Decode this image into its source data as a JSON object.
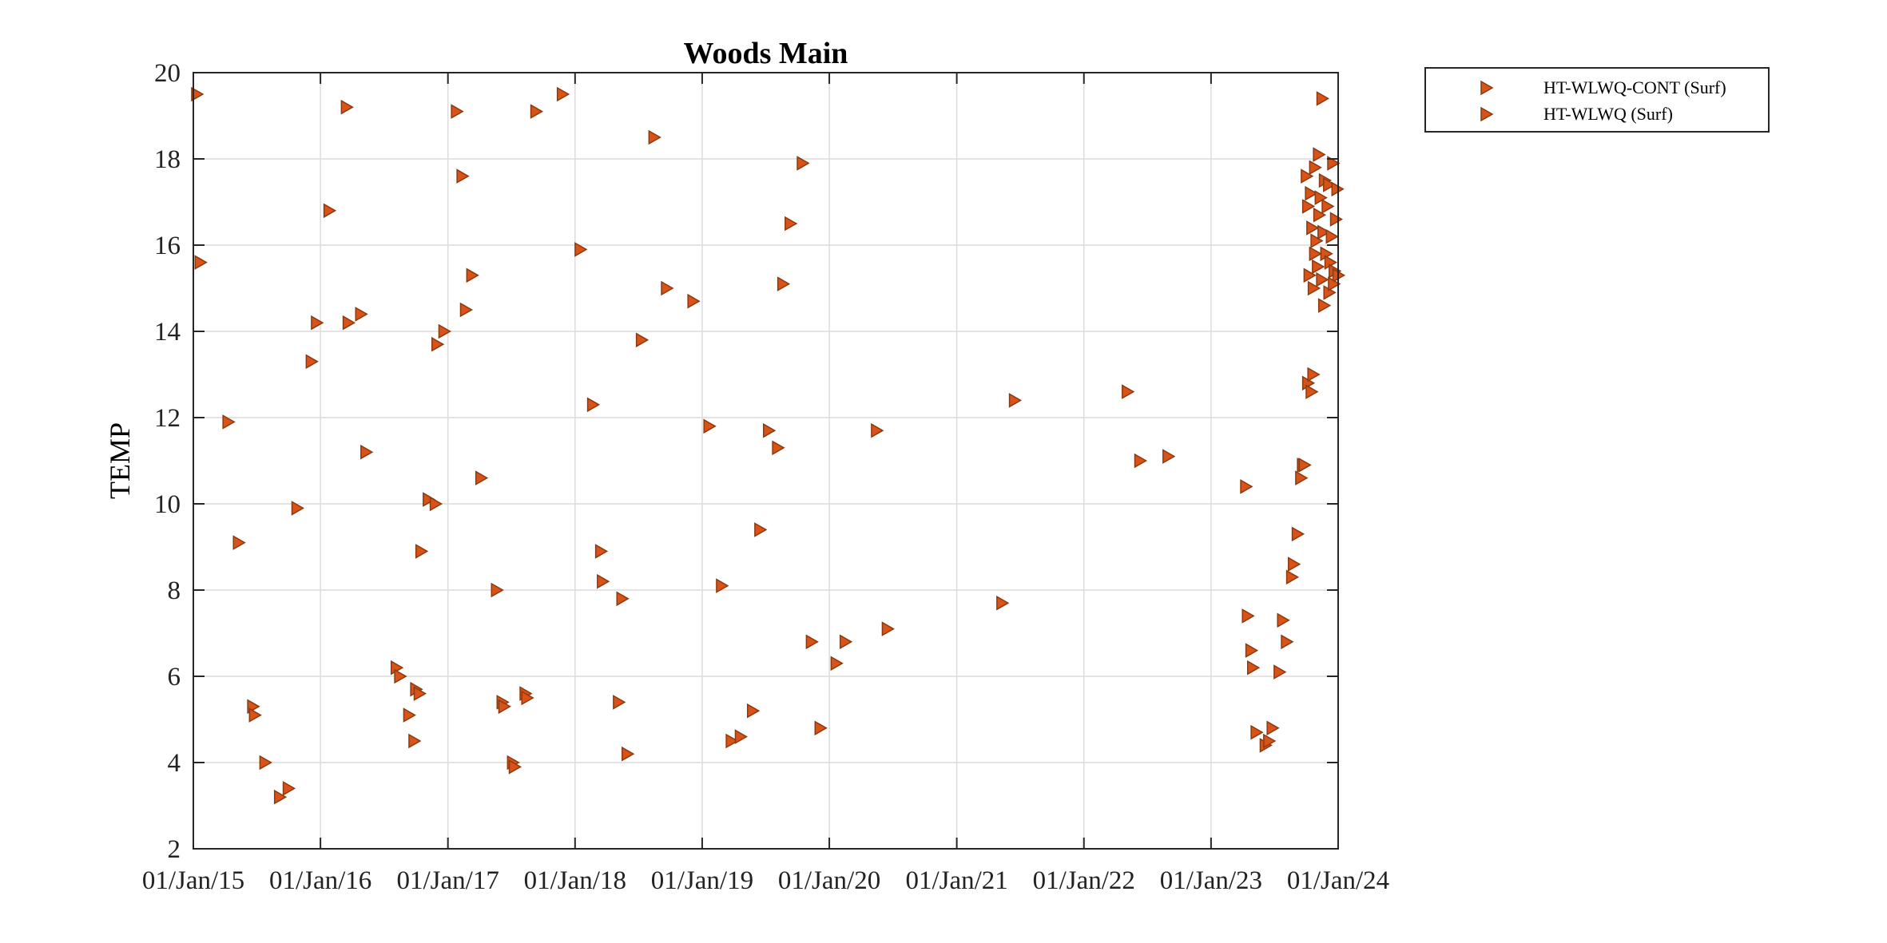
{
  "chart_data": {
    "type": "scatter",
    "title": "Woods Main",
    "xlabel": "",
    "ylabel": "TEMP",
    "x_axis_type": "date",
    "xlim": [
      "2015-01-01",
      "2024-01-01"
    ],
    "ylim": [
      2,
      20
    ],
    "grid": true,
    "legend_placement": "outside-top-right",
    "marker": "triangle-right",
    "marker_color": "#D95319",
    "marker_edge_color": "#8B3A0F",
    "xticks": [
      "2015-01-01",
      "2016-01-01",
      "2017-01-01",
      "2018-01-01",
      "2019-01-01",
      "2020-01-01",
      "2021-01-01",
      "2022-01-01",
      "2023-01-01",
      "2024-01-01"
    ],
    "xtick_labels": [
      "01/Jan/15",
      "01/Jan/16",
      "01/Jan/17",
      "01/Jan/18",
      "01/Jan/19",
      "01/Jan/20",
      "01/Jan/21",
      "01/Jan/22",
      "01/Jan/23",
      "01/Jan/24"
    ],
    "yticks": [
      2,
      4,
      6,
      8,
      10,
      12,
      14,
      16,
      18,
      20
    ],
    "ytick_labels": [
      "2",
      "4",
      "6",
      "8",
      "10",
      "12",
      "14",
      "16",
      "18",
      "20"
    ],
    "series": [
      {
        "name": "HT-WLWQ-CONT (Surf)",
        "x": [
          "2023-10-01",
          "2023-10-05",
          "2023-10-09",
          "2023-10-13",
          "2023-10-17",
          "2023-10-21",
          "2023-10-25",
          "2023-10-29",
          "2023-11-02",
          "2023-11-06",
          "2023-11-10",
          "2023-11-14",
          "2023-11-18",
          "2023-11-22",
          "2023-11-26",
          "2023-11-30",
          "2023-12-04",
          "2023-12-08",
          "2023-12-12",
          "2023-12-16",
          "2023-12-20",
          "2023-12-24",
          "2023-12-28",
          "2023-12-31",
          "2023-11-20",
          "2023-12-05",
          "2023-12-18"
        ],
        "y": [
          17.6,
          16.9,
          15.3,
          17.2,
          16.4,
          15.0,
          17.8,
          16.1,
          15.5,
          16.7,
          17.1,
          15.2,
          16.3,
          17.5,
          15.8,
          16.9,
          17.4,
          15.6,
          16.2,
          17.9,
          15.4,
          16.6,
          17.3,
          15.3,
          14.6,
          14.9,
          15.1
        ]
      },
      {
        "name": "HT-WLWQ (Surf)",
        "x": [
          "2015-01-10",
          "2015-01-20",
          "2015-04-10",
          "2015-05-10",
          "2015-06-20",
          "2015-06-25",
          "2015-07-25",
          "2015-09-05",
          "2015-09-30",
          "2015-10-25",
          "2015-12-05",
          "2015-12-20",
          "2016-01-25",
          "2016-03-15",
          "2016-03-20",
          "2016-04-25",
          "2016-05-10",
          "2016-08-05",
          "2016-08-15",
          "2016-09-10",
          "2016-09-25",
          "2016-09-30",
          "2016-10-10",
          "2016-10-15",
          "2016-11-05",
          "2016-11-25",
          "2016-11-30",
          "2016-12-20",
          "2017-01-25",
          "2017-02-10",
          "2017-02-20",
          "2017-03-10",
          "2017-04-05",
          "2017-05-20",
          "2017-06-05",
          "2017-06-10",
          "2017-07-05",
          "2017-07-10",
          "2017-08-10",
          "2017-08-15",
          "2017-09-10",
          "2017-11-25",
          "2018-01-15",
          "2018-02-20",
          "2018-03-15",
          "2018-03-20",
          "2018-05-05",
          "2018-05-15",
          "2018-05-30",
          "2018-07-10",
          "2018-08-15",
          "2018-09-20",
          "2018-12-05",
          "2019-01-20",
          "2019-02-25",
          "2019-03-25",
          "2019-04-20",
          "2019-05-25",
          "2019-06-15",
          "2019-07-10",
          "2019-08-05",
          "2019-08-20",
          "2019-09-10",
          "2019-10-15",
          "2019-11-10",
          "2019-12-05",
          "2020-01-20",
          "2020-02-15",
          "2020-05-15",
          "2020-06-15",
          "2021-05-10",
          "2021-06-15",
          "2022-05-05",
          "2022-06-10",
          "2022-08-30",
          "2023-04-10",
          "2023-04-15",
          "2023-04-25",
          "2023-04-30",
          "2023-05-10",
          "2023-06-05",
          "2023-06-15",
          "2023-06-25",
          "2023-07-15",
          "2023-07-25",
          "2023-08-05",
          "2023-08-20",
          "2023-08-25",
          "2023-09-05",
          "2023-09-15",
          "2023-09-20",
          "2023-09-25",
          "2023-10-05",
          "2023-10-15",
          "2023-10-20",
          "2023-10-25",
          "2023-11-05",
          "2023-11-15"
        ],
        "y": [
          19.5,
          15.6,
          11.9,
          9.1,
          5.3,
          5.1,
          4.0,
          3.2,
          3.4,
          9.9,
          13.3,
          14.2,
          16.8,
          19.2,
          14.2,
          14.4,
          11.2,
          6.2,
          6.0,
          5.1,
          4.5,
          5.7,
          5.6,
          8.9,
          10.1,
          10.0,
          13.7,
          14.0,
          19.1,
          17.6,
          14.5,
          15.3,
          10.6,
          8.0,
          5.4,
          5.3,
          4.0,
          3.9,
          5.6,
          5.5,
          19.1,
          19.5,
          15.9,
          12.3,
          8.9,
          8.2,
          5.4,
          7.8,
          4.2,
          13.8,
          18.5,
          15.0,
          14.7,
          11.8,
          8.1,
          4.5,
          4.6,
          5.2,
          9.4,
          11.7,
          11.3,
          15.1,
          16.5,
          17.9,
          6.8,
          4.8,
          6.3,
          6.8,
          11.7,
          7.1,
          7.7,
          12.4,
          12.6,
          11.0,
          11.1,
          10.4,
          7.4,
          6.6,
          6.2,
          4.7,
          4.4,
          4.5,
          4.8,
          6.1,
          7.3,
          6.8,
          8.3,
          8.6,
          9.3,
          10.6,
          10.9,
          10.9,
          12.8,
          12.6,
          13.0,
          15.8,
          18.1,
          19.4
        ]
      }
    ]
  }
}
